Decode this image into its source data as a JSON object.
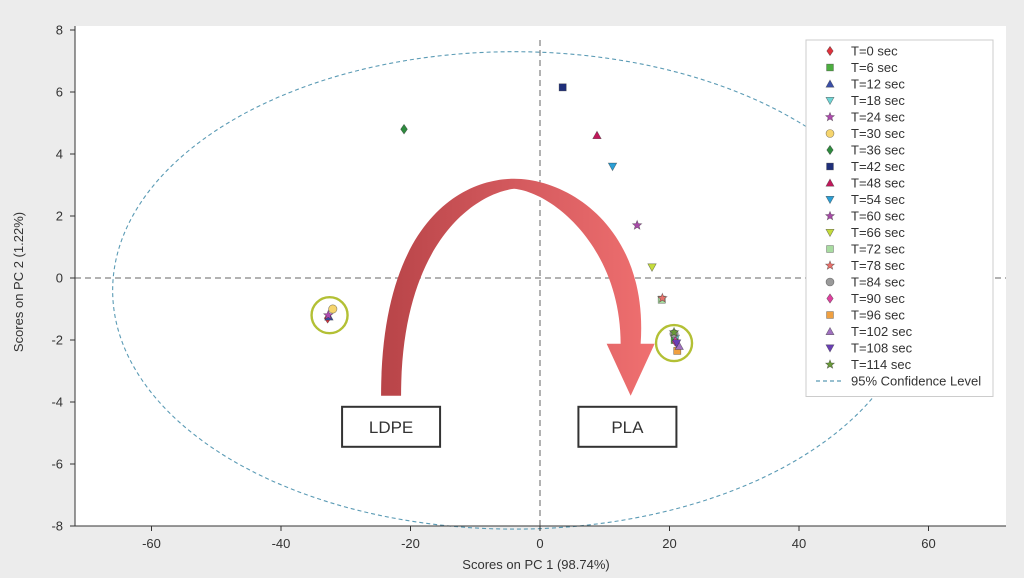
{
  "chart_data": {
    "type": "scatter",
    "title": "",
    "xlabel": "Scores on PC 1 (98.74%)",
    "ylabel": "Scores on PC 2 (1.22%)",
    "xlim": [
      -72,
      72
    ],
    "ylim": [
      -8,
      8
    ],
    "xticks": [
      -60,
      -40,
      -20,
      0,
      20,
      40,
      60
    ],
    "yticks": [
      -8,
      -6,
      -4,
      -2,
      0,
      2,
      4,
      6,
      8
    ],
    "grid": false,
    "legend_position": "top-right",
    "series": [
      {
        "name": "T=0 sec",
        "marker": "diamond",
        "color": "#e0323c",
        "points": [
          [
            -32.8,
            -1.3
          ]
        ]
      },
      {
        "name": "T=6 sec",
        "marker": "square",
        "color": "#4cae3f",
        "points": [
          [
            20.8,
            -2.0
          ]
        ]
      },
      {
        "name": "T=12 sec",
        "marker": "triangle-up",
        "color": "#3b4fa8",
        "points": [
          [
            -32.6,
            -1.25
          ]
        ]
      },
      {
        "name": "T=18 sec",
        "marker": "triangle-down",
        "color": "#6fd6d6",
        "points": [
          [
            20.9,
            -1.95
          ]
        ]
      },
      {
        "name": "T=24 sec",
        "marker": "star",
        "color": "#b04ab0",
        "points": [
          [
            -32.7,
            -1.2
          ]
        ]
      },
      {
        "name": "T=30 sec",
        "marker": "circle",
        "color": "#f6d56e",
        "points": [
          [
            -32.0,
            -1.0
          ]
        ]
      },
      {
        "name": "T=36 sec",
        "marker": "diamond",
        "color": "#2e8b3e",
        "points": [
          [
            -21.0,
            4.8
          ]
        ]
      },
      {
        "name": "T=42 sec",
        "marker": "square",
        "color": "#1f2f7a",
        "points": [
          [
            3.5,
            6.15
          ]
        ]
      },
      {
        "name": "T=48 sec",
        "marker": "triangle-up",
        "color": "#c2185b",
        "points": [
          [
            8.8,
            4.6
          ]
        ]
      },
      {
        "name": "T=54 sec",
        "marker": "triangle-down",
        "color": "#2a9fd6",
        "points": [
          [
            11.2,
            3.6
          ]
        ]
      },
      {
        "name": "T=60 sec",
        "marker": "star",
        "color": "#a84aa8",
        "points": [
          [
            15.0,
            1.7
          ]
        ]
      },
      {
        "name": "T=66 sec",
        "marker": "triangle-down",
        "color": "#c5dc3c",
        "points": [
          [
            17.3,
            0.35
          ]
        ]
      },
      {
        "name": "T=72 sec",
        "marker": "square",
        "color": "#a8dca0",
        "points": [
          [
            18.8,
            -0.7
          ]
        ]
      },
      {
        "name": "T=78 sec",
        "marker": "star",
        "color": "#e8716c",
        "points": [
          [
            18.9,
            -0.65
          ]
        ]
      },
      {
        "name": "T=84 sec",
        "marker": "circle",
        "color": "#9a9a9a",
        "points": [
          [
            20.7,
            -1.8
          ]
        ]
      },
      {
        "name": "T=90 sec",
        "marker": "diamond",
        "color": "#e040a0",
        "points": [
          [
            20.9,
            -2.05
          ]
        ]
      },
      {
        "name": "T=96 sec",
        "marker": "square",
        "color": "#f0a040",
        "points": [
          [
            21.2,
            -2.35
          ]
        ]
      },
      {
        "name": "T=102 sec",
        "marker": "triangle-up",
        "color": "#a070c0",
        "points": [
          [
            21.5,
            -2.2
          ]
        ]
      },
      {
        "name": "T=108 sec",
        "marker": "triangle-down",
        "color": "#6a3fb5",
        "points": [
          [
            21.1,
            -2.1
          ]
        ]
      },
      {
        "name": "T=114 sec",
        "marker": "star",
        "color": "#6a9a3a",
        "points": [
          [
            20.7,
            -1.75
          ]
        ]
      }
    ],
    "confidence_ellipse": {
      "name": "95% Confidence Level",
      "center": [
        -4,
        -0.4
      ],
      "radius_x": 62,
      "radius_y": 7.7,
      "color": "#5b9bb5"
    },
    "highlight_circles": [
      {
        "center": [
          -32.5,
          -1.2
        ],
        "color": "#b3c035"
      },
      {
        "center": [
          20.7,
          -2.1
        ],
        "color": "#b3c035"
      }
    ],
    "annotations": [
      {
        "text": "LDPE",
        "at": [
          -23,
          -4.8
        ]
      },
      {
        "text": "PLA",
        "at": [
          13.5,
          -4.8
        ]
      }
    ],
    "arrow": {
      "from": [
        -23,
        -3.8
      ],
      "apex": [
        -4,
        3.2
      ],
      "to": [
        14,
        -3.8
      ],
      "color": "#e06060"
    }
  }
}
